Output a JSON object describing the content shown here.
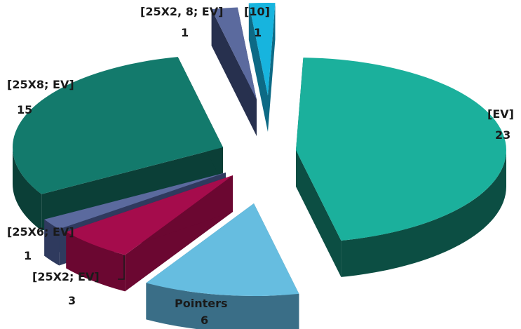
{
  "chart_data": {
    "type": "pie",
    "style": "3d-exploded",
    "title": "",
    "slices": [
      {
        "label": "[EV]",
        "value": 23,
        "value_text": "23",
        "color": "#1bb09c",
        "side_color": "#0c4e43"
      },
      {
        "label": "Pointers",
        "value": 6,
        "value_text": "6",
        "color": "#66bde0",
        "side_color": "#3a6e87"
      },
      {
        "label": "[25X2; EV]",
        "value": 3,
        "value_text": "3",
        "color": "#a50c4c",
        "side_color": "#6b0731"
      },
      {
        "label": "[25X6; EV]",
        "value": 1,
        "value_text": "1",
        "color": "#5b6a9e",
        "side_color": "#2f3a5e"
      },
      {
        "label": "[25X8; EV]",
        "value": 15,
        "value_text": "15",
        "color": "#137a6c",
        "side_color": "#0b3f37"
      },
      {
        "label": "[25X2, 8; EV]",
        "value": 1,
        "value_text": "1",
        "color": "#5b6a9e",
        "side_color": "#27304e"
      },
      {
        "label": "[10]",
        "value": 1,
        "value_text": "1",
        "color": "#17b4de",
        "side_color": "#0d6a85"
      }
    ]
  }
}
